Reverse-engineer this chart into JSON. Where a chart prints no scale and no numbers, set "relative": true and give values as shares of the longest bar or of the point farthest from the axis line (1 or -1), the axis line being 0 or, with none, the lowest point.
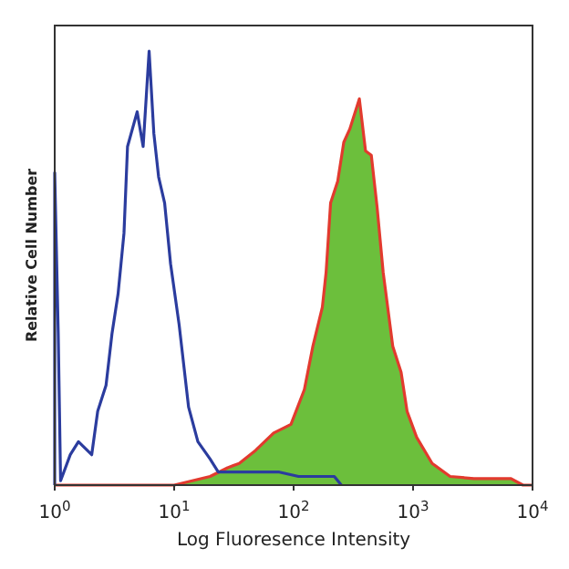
{
  "chart_data": {
    "type": "line",
    "xlabel": "Log Fluoresence Intensity",
    "ylabel": "Relative Cell Number",
    "log": "x",
    "relative": true,
    "xlim": [
      1,
      10000
    ],
    "xticks": [
      {
        "value": 1,
        "label": "10$^{0}$"
      },
      {
        "value": 10,
        "label": "10$^{1}$"
      },
      {
        "value": 100,
        "label": "10$^{2}$"
      },
      {
        "value": 1000,
        "label": "10$^{3}$"
      },
      {
        "value": 10000,
        "label": "10$^{4}$"
      }
    ],
    "series": [
      {
        "type": "area",
        "color": "#6cbf3c",
        "x": [
          10,
          20,
          28,
          35,
          48,
          68,
          95,
          123,
          145,
          174,
          187,
          204,
          234,
          263,
          295,
          355,
          400,
          447,
          500,
          562,
          676,
          794,
          891,
          1072,
          1445,
          2042,
          3236,
          6607,
          8318
        ],
        "values": [
          0,
          0.02,
          0.04,
          0.05,
          0.08,
          0.12,
          0.14,
          0.22,
          0.32,
          0.41,
          0.49,
          0.65,
          0.7,
          0.79,
          0.82,
          0.89,
          0.77,
          0.76,
          0.64,
          0.49,
          0.32,
          0.26,
          0.17,
          0.11,
          0.05,
          0.02,
          0.015,
          0.015,
          0
        ]
      },
      {
        "color": "#e23a2e",
        "x": [
          1,
          10,
          20,
          28,
          35,
          48,
          68,
          95,
          123,
          145,
          174,
          187,
          204,
          234,
          263,
          295,
          355,
          400,
          447,
          500,
          562,
          676,
          794,
          891,
          1072,
          1445,
          2042,
          3236,
          6607,
          8318,
          10000
        ],
        "values": [
          0,
          0,
          0.02,
          0.04,
          0.05,
          0.08,
          0.12,
          0.14,
          0.22,
          0.32,
          0.41,
          0.49,
          0.65,
          0.7,
          0.79,
          0.82,
          0.89,
          0.77,
          0.76,
          0.64,
          0.49,
          0.32,
          0.26,
          0.17,
          0.11,
          0.05,
          0.02,
          0.015,
          0.015,
          0,
          0
        ]
      },
      {
        "color": "#2b3c9e",
        "x": [
          1,
          1,
          1.07,
          1.12,
          1.35,
          1.58,
          2.04,
          2.29,
          2.69,
          3.02,
          3.39,
          3.8,
          4.07,
          4.9,
          5.5,
          6.17,
          6.76,
          7.41,
          8.32,
          9.33,
          11,
          13.2,
          15.8,
          20,
          23.4,
          33.9,
          75.9,
          110,
          174,
          219,
          251
        ],
        "values": [
          0,
          0.72,
          0.35,
          0.01,
          0.07,
          0.1,
          0.07,
          0.17,
          0.23,
          0.35,
          0.44,
          0.58,
          0.78,
          0.86,
          0.78,
          1,
          0.81,
          0.71,
          0.65,
          0.51,
          0.37,
          0.18,
          0.1,
          0.06,
          0.03,
          0.03,
          0.03,
          0.02,
          0.02,
          0.02,
          0
        ]
      }
    ]
  }
}
